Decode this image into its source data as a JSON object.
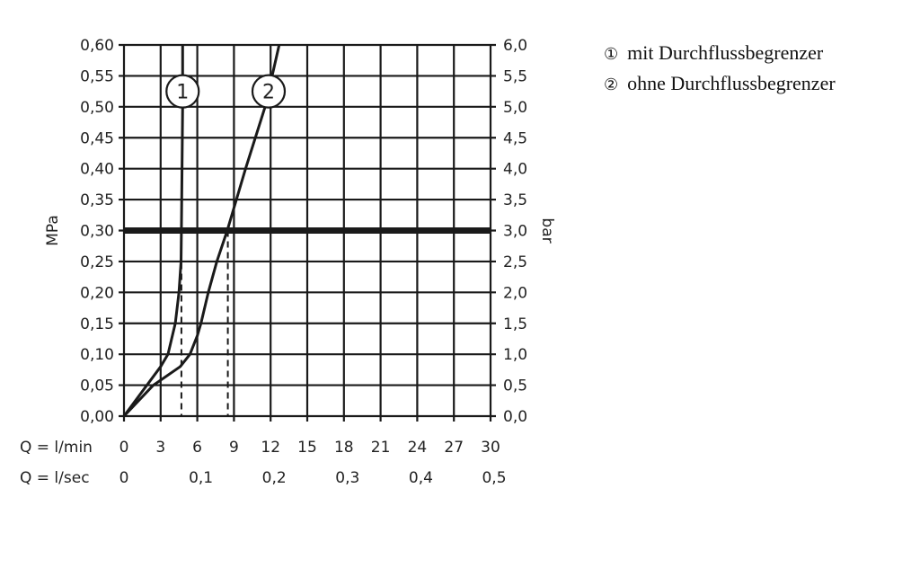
{
  "chart_data": {
    "type": "line",
    "title": "",
    "xlabel": "Q = l/min",
    "xlabel_secondary": "Q = l/sec",
    "ylabel": "MPa",
    "ylabel_right": "bar",
    "xlim": [
      0,
      30
    ],
    "ylim": [
      0,
      0.6
    ],
    "grid": true,
    "x_ticks": [
      "0",
      "3",
      "6",
      "9",
      "12",
      "15",
      "18",
      "21",
      "24",
      "27",
      "30"
    ],
    "x_ticks_values": [
      0,
      3,
      6,
      9,
      12,
      15,
      18,
      21,
      24,
      27,
      30
    ],
    "x2_ticks": [
      "0",
      "0,1",
      "0,2",
      "0,3",
      "0,4",
      "0,5"
    ],
    "x2_ticks_values": [
      0,
      6,
      12,
      18,
      24,
      30
    ],
    "y_ticks": [
      "0,00",
      "0,05",
      "0,10",
      "0,15",
      "0,20",
      "0,25",
      "0,30",
      "0,35",
      "0,40",
      "0,45",
      "0,50",
      "0,55",
      "0,60"
    ],
    "y_right_ticks": [
      "0,0",
      "0,5",
      "1,0",
      "1,5",
      "2,0",
      "2,5",
      "3,0",
      "3,5",
      "4,0",
      "4,5",
      "5,0",
      "5,5",
      "6,0"
    ],
    "reference_line_y": 0.3,
    "series": [
      {
        "label": "1",
        "x": [
          0,
          3.0,
          3.6,
          4.2,
          4.5,
          4.67,
          4.7,
          4.75,
          4.8,
          4.8
        ],
        "y": [
          0,
          0.08,
          0.1,
          0.15,
          0.2,
          0.25,
          0.3,
          0.4,
          0.5,
          0.6
        ],
        "drop_x": 4.7
      },
      {
        "label": "2",
        "x": [
          0,
          2.4,
          4.6,
          5.4,
          6.0,
          6.3,
          6.9,
          7.6,
          8.45,
          9.95,
          11.55,
          12.7
        ],
        "y": [
          0,
          0.05,
          0.08,
          0.1,
          0.13,
          0.15,
          0.2,
          0.25,
          0.3,
          0.4,
          0.5,
          0.6
        ],
        "drop_x": 8.5
      }
    ],
    "legend": [
      {
        "num": "①",
        "text": "mit Durchflussbegrenzer"
      },
      {
        "num": "②",
        "text": "ohne Durchflussbegrenzer"
      }
    ],
    "legend_placement": "top-right",
    "color": "#1a1a1a"
  }
}
